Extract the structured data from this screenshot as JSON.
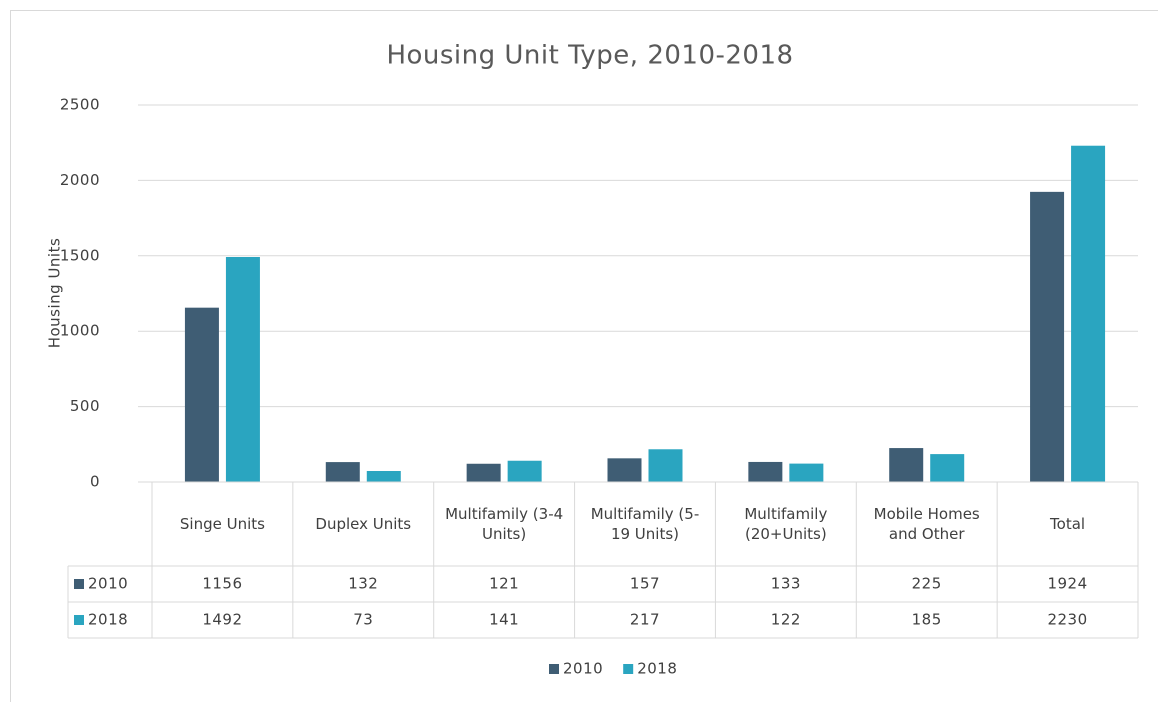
{
  "chart_data": {
    "type": "bar",
    "title": "Housing Unit Type, 2010-2018",
    "y_label": "Housing Units",
    "categories": [
      "Singe Units",
      "Duplex Units",
      "Multifamily (3-4 Units)",
      "Multifamily (5-19 Units)",
      "Multifamily (20+Units)",
      "Mobile Homes and Other",
      "Total"
    ],
    "series": [
      {
        "name": "2010",
        "color": "#3f5d74",
        "values": [
          1156,
          132,
          121,
          157,
          133,
          225,
          1924
        ]
      },
      {
        "name": "2018",
        "color": "#2aa5c0",
        "values": [
          1492,
          73,
          141,
          217,
          122,
          185,
          2230
        ]
      }
    ],
    "ylim": [
      0,
      2500
    ],
    "yticks": [
      0,
      500,
      1000,
      1500,
      2000,
      2500
    ],
    "grid": true,
    "legend": "bottom",
    "data_table": true
  }
}
